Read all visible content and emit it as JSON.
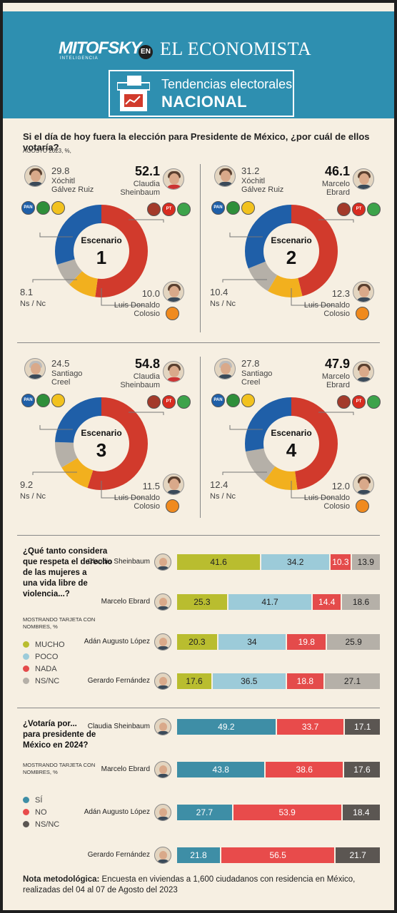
{
  "header": {
    "brand_left": "MITOFSKY",
    "brand_left_sub": "INTELIGENCIA",
    "connector": "EN",
    "brand_right": "EL ECONOMISTA",
    "section_title": "Tendencias electorales",
    "section_subtitle": "NACIONAL"
  },
  "colors": {
    "blue": "#1f5fa8",
    "red": "#d13a2c",
    "yellow": "#f2b01e",
    "gray": "#b5b0a8",
    "olive": "#b9bd2f",
    "lightblue": "#9ccbd9",
    "nada_red": "#e44b4b",
    "teal": "#3e8ea6",
    "darkgray": "#5b5652",
    "si_teal": "#3e8ea6",
    "no_red": "#e84b4b"
  },
  "question1": {
    "title": "Si el día de hoy fuera la elección para Presidente de México, ¿por cuál de ellos votaría?",
    "date": "AGOSTO 2023, %,"
  },
  "scenarios": [
    {
      "label": "Escenario",
      "number": "1",
      "left_pct": "29.8",
      "left_name_1": "Xóchitl",
      "left_name_2": "Gálvez Ruiz",
      "right_pct": "52.1",
      "right_name_1": "Claudia",
      "right_name_2": "Sheinbaum",
      "bottom_pct": "10.0",
      "bottom_name_1": "Luis Donaldo",
      "bottom_name_2": "Colosio",
      "ns_pct": "8.1",
      "ns_label": "Ns / Nc"
    },
    {
      "label": "Escenario",
      "number": "2",
      "left_pct": "31.2",
      "left_name_1": "Xóchitl",
      "left_name_2": "Gálvez Ruiz",
      "right_pct": "46.1",
      "right_name_1": "Marcelo",
      "right_name_2": "Ebrard",
      "bottom_pct": "12.3",
      "bottom_name_1": "Luis Donaldo",
      "bottom_name_2": "Colosio",
      "ns_pct": "10.4",
      "ns_label": "Ns / Nc"
    },
    {
      "label": "Escenario",
      "number": "3",
      "left_pct": "24.5",
      "left_name_1": "Santiago",
      "left_name_2": "Creel",
      "right_pct": "54.8",
      "right_name_1": "Claudia",
      "right_name_2": "Sheinbaum",
      "bottom_pct": "11.5",
      "bottom_name_1": "Luis Donaldo",
      "bottom_name_2": "Colosio",
      "ns_pct": "9.2",
      "ns_label": "Ns / Nc"
    },
    {
      "label": "Escenario",
      "number": "4",
      "left_pct": "27.8",
      "left_name_1": "Santiago",
      "left_name_2": "Creel",
      "right_pct": "47.9",
      "right_name_1": "Marcelo",
      "right_name_2": "Ebrard",
      "bottom_pct": "12.0",
      "bottom_name_1": "Luis Donaldo",
      "bottom_name_2": "Colosio",
      "ns_pct": "12.4",
      "ns_label": "Ns / Nc"
    }
  ],
  "party_logos": {
    "pan": "PAN",
    "pt": "PT"
  },
  "question2": {
    "title_lines": [
      "¿Qué tanto considera",
      "que respeta el derecho",
      "de las mujeres a",
      "una vida libre de",
      "violencia...?"
    ],
    "sub_lines": [
      "MOSTRANDO TARJETA CON",
      "NOMBRES, %"
    ],
    "legend": [
      "MUCHO",
      "POCO",
      "NADA",
      "NS/NC"
    ]
  },
  "question3": {
    "title_lines": [
      "¿Votaría por...",
      "para presidente de",
      "México en 2024?"
    ],
    "sub_lines": [
      "MOSTRANDO TARJETA CON",
      "NOMBRES, %"
    ],
    "legend": [
      "SÍ",
      "NO",
      "NS/NC"
    ]
  },
  "chart_data": [
    {
      "type": "pie",
      "title": "Escenario 1",
      "categories": [
        "Claudia Sheinbaum",
        "Luis Donaldo Colosio",
        "Ns / Nc",
        "Xóchitl Gálvez Ruiz"
      ],
      "values": [
        52.1,
        10.0,
        8.1,
        29.8
      ]
    },
    {
      "type": "pie",
      "title": "Escenario 2",
      "categories": [
        "Marcelo Ebrard",
        "Luis Donaldo Colosio",
        "Ns / Nc",
        "Xóchitl Gálvez Ruiz"
      ],
      "values": [
        46.1,
        12.3,
        10.4,
        31.2
      ]
    },
    {
      "type": "pie",
      "title": "Escenario 3",
      "categories": [
        "Claudia Sheinbaum",
        "Luis Donaldo Colosio",
        "Ns / Nc",
        "Santiago Creel"
      ],
      "values": [
        54.8,
        11.5,
        9.2,
        24.5
      ]
    },
    {
      "type": "pie",
      "title": "Escenario 4",
      "categories": [
        "Marcelo Ebrard",
        "Luis Donaldo Colosio",
        "Ns / Nc",
        "Santiago Creel"
      ],
      "values": [
        47.9,
        12.0,
        12.4,
        27.8
      ]
    },
    {
      "type": "bar",
      "stacked": true,
      "orientation": "horizontal",
      "categories": [
        "Claudia Sheinbaum",
        "Marcelo Ebrard",
        "Adán Augusto López",
        "Gerardo Fernández"
      ],
      "series": [
        {
          "name": "MUCHO",
          "values": [
            41.6,
            25.3,
            20.3,
            17.6
          ]
        },
        {
          "name": "POCO",
          "values": [
            34.2,
            41.7,
            34.0,
            36.5
          ]
        },
        {
          "name": "NADA",
          "values": [
            10.3,
            14.4,
            19.8,
            18.8
          ]
        },
        {
          "name": "NS/NC",
          "values": [
            13.9,
            18.6,
            25.9,
            27.1
          ]
        }
      ]
    },
    {
      "type": "bar",
      "stacked": true,
      "orientation": "horizontal",
      "categories": [
        "Claudia Sheinbaum",
        "Marcelo Ebrard",
        "Adán Augusto López",
        "Gerardo Fernández"
      ],
      "series": [
        {
          "name": "SÍ",
          "values": [
            49.2,
            43.8,
            27.7,
            21.8
          ]
        },
        {
          "name": "NO",
          "values": [
            33.7,
            38.6,
            53.9,
            56.5
          ]
        },
        {
          "name": "NS/NC",
          "values": [
            17.1,
            17.6,
            18.4,
            21.7
          ]
        }
      ]
    }
  ],
  "nota": {
    "label": "Nota metodológica:",
    "text": " Encuesta en viviendas a 1,600 ciudadanos con residencia en México, realizadas del 04 al 07 de Agosto del 2023"
  }
}
